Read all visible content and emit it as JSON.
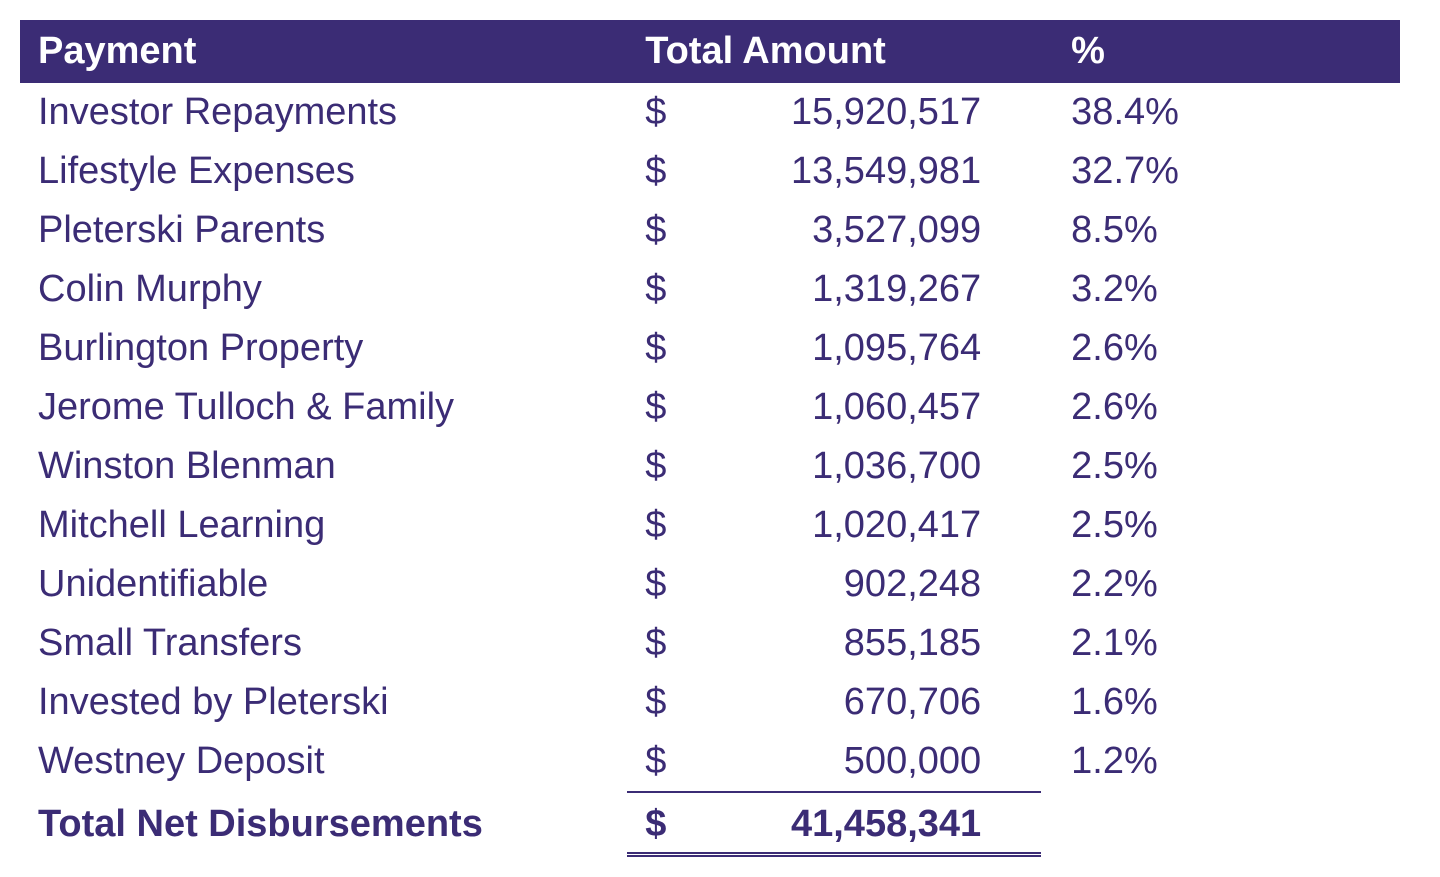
{
  "table": {
    "type": "table",
    "header_bg": "#3b2c75",
    "header_fg": "#ffffff",
    "body_fg": "#3b2c75",
    "font_size_pt": 28,
    "currency_symbol": "$",
    "columns": {
      "payment": "Payment",
      "total_amount": "Total Amount",
      "percent": "%"
    },
    "rows": [
      {
        "payment": "Investor Repayments",
        "amount": "15,920,517",
        "percent": "38.4%"
      },
      {
        "payment": "Lifestyle Expenses",
        "amount": "13,549,981",
        "percent": "32.7%"
      },
      {
        "payment": "Pleterski Parents",
        "amount": "3,527,099",
        "percent": "8.5%"
      },
      {
        "payment": "Colin Murphy",
        "amount": "1,319,267",
        "percent": "3.2%"
      },
      {
        "payment": "Burlington Property",
        "amount": "1,095,764",
        "percent": "2.6%"
      },
      {
        "payment": "Jerome Tulloch & Family",
        "amount": "1,060,457",
        "percent": "2.6%"
      },
      {
        "payment": "Winston Blenman",
        "amount": "1,036,700",
        "percent": "2.5%"
      },
      {
        "payment": "Mitchell Learning",
        "amount": "1,020,417",
        "percent": "2.5%"
      },
      {
        "payment": "Unidentifiable",
        "amount": "902,248",
        "percent": "2.2%"
      },
      {
        "payment": "Small Transfers",
        "amount": "855,185",
        "percent": "2.1%"
      },
      {
        "payment": "Invested by Pleterski",
        "amount": "670,706",
        "percent": "1.6%"
      },
      {
        "payment": "Westney Deposit",
        "amount": "500,000",
        "percent": "1.2%"
      }
    ],
    "total": {
      "label": "Total Net Disbursements",
      "amount": "41,458,341"
    }
  }
}
